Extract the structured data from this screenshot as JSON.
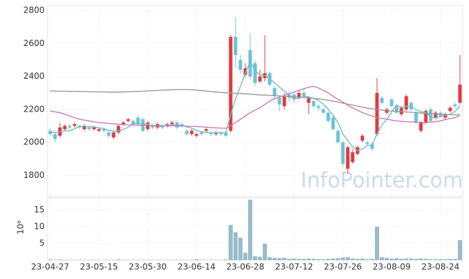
{
  "chart_data": {
    "type": "candlestick",
    "watermark": "InfoPointer.com",
    "categories": [
      "23-04-27",
      null,
      null,
      null,
      null,
      null,
      null,
      null,
      null,
      null,
      "23-05-15",
      null,
      null,
      null,
      null,
      null,
      null,
      null,
      null,
      null,
      "23-05-30",
      null,
      null,
      null,
      null,
      null,
      null,
      null,
      null,
      null,
      "23-06-14",
      null,
      null,
      null,
      null,
      null,
      null,
      null,
      null,
      null,
      "23-06-28",
      null,
      null,
      null,
      null,
      null,
      null,
      null,
      null,
      null,
      "23-07-12",
      null,
      null,
      null,
      null,
      null,
      null,
      null,
      null,
      null,
      "23-07-26",
      null,
      null,
      null,
      null,
      null,
      null,
      null,
      null,
      null,
      "23-08-09",
      null,
      null,
      null,
      null,
      null,
      null,
      null,
      null,
      null,
      "23-08-24",
      null,
      null,
      null,
      null
    ],
    "open": [
      2070,
      2050,
      2040,
      2080,
      2100,
      2100,
      2100,
      2080,
      2090,
      2080,
      2070,
      2080,
      2060,
      2030,
      2060,
      2110,
      2130,
      2130,
      2150,
      2140,
      2080,
      2100,
      2090,
      2100,
      2100,
      2110,
      2120,
      2110,
      2070,
      2050,
      2040,
      2060,
      2070,
      2060,
      2050,
      2060,
      2060,
      2070,
      2640,
      2500,
      2410,
      2560,
      2480,
      2370,
      2390,
      2420,
      2330,
      2270,
      2220,
      2290,
      2290,
      2270,
      2300,
      2240,
      2250,
      2220,
      2200,
      2180,
      2150,
      2070,
      2000,
      1840,
      1880,
      1930,
      2010,
      2000,
      1990,
      2050,
      2270,
      2180,
      2260,
      2220,
      2170,
      2200,
      2240,
      2180,
      2070,
      2120,
      2200,
      2150,
      2180,
      2150,
      2190,
      2230,
      2240
    ],
    "high": [
      2085,
      2060,
      2120,
      2110,
      2110,
      2120,
      2105,
      2110,
      2100,
      2100,
      2090,
      2090,
      2070,
      2070,
      2110,
      2130,
      2150,
      2140,
      2160,
      2150,
      2130,
      2110,
      2120,
      2110,
      2120,
      2130,
      2130,
      2120,
      2080,
      2080,
      2060,
      2070,
      2090,
      2070,
      2070,
      2070,
      2070,
      2650,
      2760,
      2530,
      2480,
      2660,
      2500,
      2440,
      2650,
      2430,
      2340,
      2280,
      2300,
      2310,
      2300,
      2320,
      2330,
      2280,
      2260,
      2230,
      2210,
      2190,
      2160,
      2080,
      2010,
      1980,
      1960,
      1980,
      2050,
      2010,
      2000,
      2390,
      2280,
      2210,
      2270,
      2230,
      2220,
      2290,
      2250,
      2190,
      2130,
      2200,
      2210,
      2190,
      2190,
      2180,
      2220,
      2240,
      2530
    ],
    "low": [
      2040,
      2000,
      2030,
      2070,
      2080,
      2090,
      2080,
      2070,
      2070,
      2070,
      2060,
      2060,
      2030,
      2020,
      2050,
      2100,
      2120,
      2100,
      2100,
      2060,
      2070,
      2080,
      2080,
      2080,
      2090,
      2100,
      2080,
      2090,
      2040,
      2040,
      2030,
      2040,
      2060,
      2040,
      2040,
      2040,
      2030,
      2060,
      2450,
      2420,
      2400,
      2380,
      2340,
      2360,
      2370,
      2340,
      2260,
      2190,
      2200,
      2250,
      2240,
      2260,
      2270,
      2170,
      2210,
      2190,
      2170,
      2120,
      2070,
      1990,
      1850,
      1810,
      1870,
      1920,
      2000,
      1980,
      1950,
      2040,
      2230,
      2170,
      2210,
      2170,
      2160,
      2190,
      2190,
      2110,
      2060,
      2110,
      2120,
      2140,
      2150,
      2140,
      2180,
      2210,
      2230
    ],
    "close": [
      2050,
      2020,
      2090,
      2100,
      2090,
      2110,
      2090,
      2100,
      2080,
      2090,
      2080,
      2070,
      2040,
      2060,
      2100,
      2120,
      2140,
      2110,
      2110,
      2070,
      2120,
      2090,
      2110,
      2090,
      2110,
      2120,
      2090,
      2100,
      2050,
      2070,
      2050,
      2050,
      2080,
      2050,
      2060,
      2050,
      2040,
      2640,
      2530,
      2440,
      2450,
      2400,
      2360,
      2400,
      2420,
      2350,
      2280,
      2230,
      2280,
      2270,
      2260,
      2300,
      2280,
      2270,
      2220,
      2210,
      2180,
      2130,
      2080,
      2000,
      1870,
      1970,
      1940,
      1970,
      2040,
      1990,
      1960,
      2300,
      2240,
      2200,
      2220,
      2180,
      2210,
      2280,
      2200,
      2120,
      2120,
      2190,
      2130,
      2180,
      2160,
      2170,
      2210,
      2220,
      2350
    ],
    "up_color": "#e0393e",
    "down_color": "#6cc3d6",
    "ma": [
      {
        "color": "#6fbfbf",
        "values": [
          2060,
          2060,
          2065,
          2070,
          2070,
          2082,
          2098,
          2098,
          2094,
          2094,
          2088,
          2084,
          2072,
          2068,
          2070,
          2078,
          2092,
          2114,
          2116,
          2110,
          2110,
          2100,
          2100,
          2096,
          2104,
          2104,
          2104,
          2102,
          2094,
          2086,
          2072,
          2064,
          2060,
          2056,
          2058,
          2058,
          2056,
          2168,
          2264,
          2340,
          2420,
          2492,
          2436,
          2410,
          2406,
          2386,
          2362,
          2336,
          2312,
          2286,
          2264,
          2268,
          2278,
          2276,
          2266,
          2256,
          2232,
          2202,
          2164,
          2120,
          2052,
          2010,
          1972,
          1950,
          1958,
          1982,
          1980,
          2052,
          2106,
          2138,
          2184,
          2228,
          2210,
          2218,
          2218,
          2198,
          2186,
          2182,
          2152,
          2148,
          2156,
          2166,
          2170,
          2188,
          2222
        ]
      },
      {
        "color": "#c77bb8",
        "values": [
          2190,
          2185,
          2180,
          2170,
          2160,
          2150,
          2140,
          2135,
          2130,
          2125,
          2120,
          2118,
          2115,
          2112,
          2110,
          2108,
          2106,
          2105,
          2104,
          2103,
          2102,
          2102,
          2101,
          2101,
          2100,
          2100,
          2100,
          2099,
          2098,
          2097,
          2096,
          2094,
          2092,
          2090,
          2088,
          2086,
          2085,
          2100,
          2120,
          2140,
          2160,
          2180,
          2195,
          2210,
          2230,
          2250,
          2265,
          2275,
          2285,
          2295,
          2305,
          2315,
          2325,
          2335,
          2340,
          2330,
          2315,
          2300,
          2280,
          2260,
          2245,
          2225,
          2210,
          2195,
          2180,
          2170,
          2160,
          2150,
          2145,
          2140,
          2135,
          2130,
          2128,
          2125,
          2124,
          2122,
          2120,
          2120,
          2122,
          2125,
          2130,
          2138,
          2145,
          2150,
          2165
        ]
      },
      {
        "color": "#999999",
        "values": [
          2312,
          2311,
          2310,
          2310,
          2309,
          2309,
          2308,
          2308,
          2307,
          2307,
          2306,
          2306,
          2305,
          2305,
          2305,
          2306,
          2307,
          2308,
          2309,
          2310,
          2312,
          2314,
          2315,
          2317,
          2318,
          2319,
          2320,
          2320,
          2320,
          2319,
          2317,
          2314,
          2311,
          2308,
          2305,
          2303,
          2300,
          2300,
          2298,
          2296,
          2294,
          2292,
          2290,
          2288,
          2287,
          2285,
          2283,
          2282,
          2280,
          2278,
          2276,
          2274,
          2272,
          2270,
          2267,
          2264,
          2260,
          2255,
          2250,
          2244,
          2238,
          2232,
          2226,
          2220,
          2214,
          2208,
          2203,
          2199,
          2196,
          2193,
          2190,
          2188,
          2186,
          2184,
          2182,
          2180,
          2178,
          2176,
          2174,
          2172,
          2170,
          2169,
          2168,
          2167,
          2166
        ]
      }
    ],
    "ylim": [
      1670,
      2830
    ],
    "yticks": [
      1800,
      2000,
      2200,
      2400,
      2600,
      2800
    ],
    "grid": true,
    "volume": {
      "label": "10⁶",
      "color": "#98bccb",
      "ylim": [
        0,
        18.5
      ],
      "yticks": [
        5,
        10,
        15
      ],
      "values": [
        0.2,
        0.1,
        0.2,
        0.1,
        0.1,
        0.1,
        0.1,
        0.1,
        0.1,
        0.1,
        0.1,
        0.1,
        0.1,
        0.1,
        0.2,
        0.1,
        0.1,
        0.1,
        0.1,
        0.1,
        0.1,
        0.1,
        0.1,
        0.1,
        0.1,
        0.1,
        0.1,
        0.1,
        0.1,
        0.1,
        0.3,
        0.1,
        0.1,
        0.1,
        0.1,
        0.1,
        0.2,
        10.5,
        8.3,
        6.7,
        2.2,
        18,
        1.2,
        1.0,
        4.9,
        0.9,
        0.7,
        0.6,
        0.7,
        0.4,
        0.5,
        0.4,
        0.4,
        0.5,
        0.4,
        0.3,
        0.3,
        0.4,
        0.5,
        0.6,
        0.8,
        0.9,
        0.5,
        0.4,
        0.5,
        0.3,
        0.4,
        10,
        0.9,
        0.7,
        0.5,
        0.6,
        0.4,
        0.5,
        0.5,
        0.4,
        0.5,
        0.4,
        0.3,
        0.3,
        0.3,
        0.3,
        0.4,
        0.4,
        6
      ]
    }
  }
}
